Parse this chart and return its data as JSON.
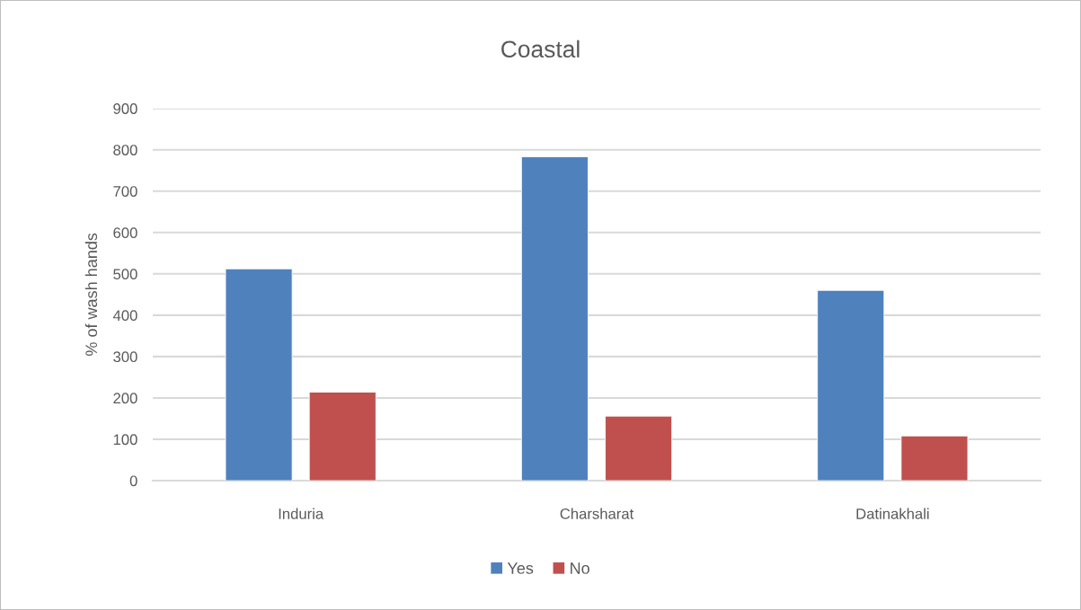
{
  "chart_data": {
    "type": "bar",
    "title": "Coastal",
    "ylabel": "% of wash hands",
    "categories": [
      "Induria",
      "Charsharat",
      "Datinakhali"
    ],
    "series": [
      {
        "name": "Yes",
        "color": "#4f81bd",
        "values": [
          512,
          783,
          460
        ]
      },
      {
        "name": "No",
        "color": "#c0504d",
        "values": [
          214,
          156,
          108
        ]
      }
    ],
    "ylim": [
      0,
      900
    ],
    "yticks": [
      0,
      100,
      200,
      300,
      400,
      500,
      600,
      700,
      800,
      900
    ],
    "grid": "y",
    "legend": "bottom"
  }
}
